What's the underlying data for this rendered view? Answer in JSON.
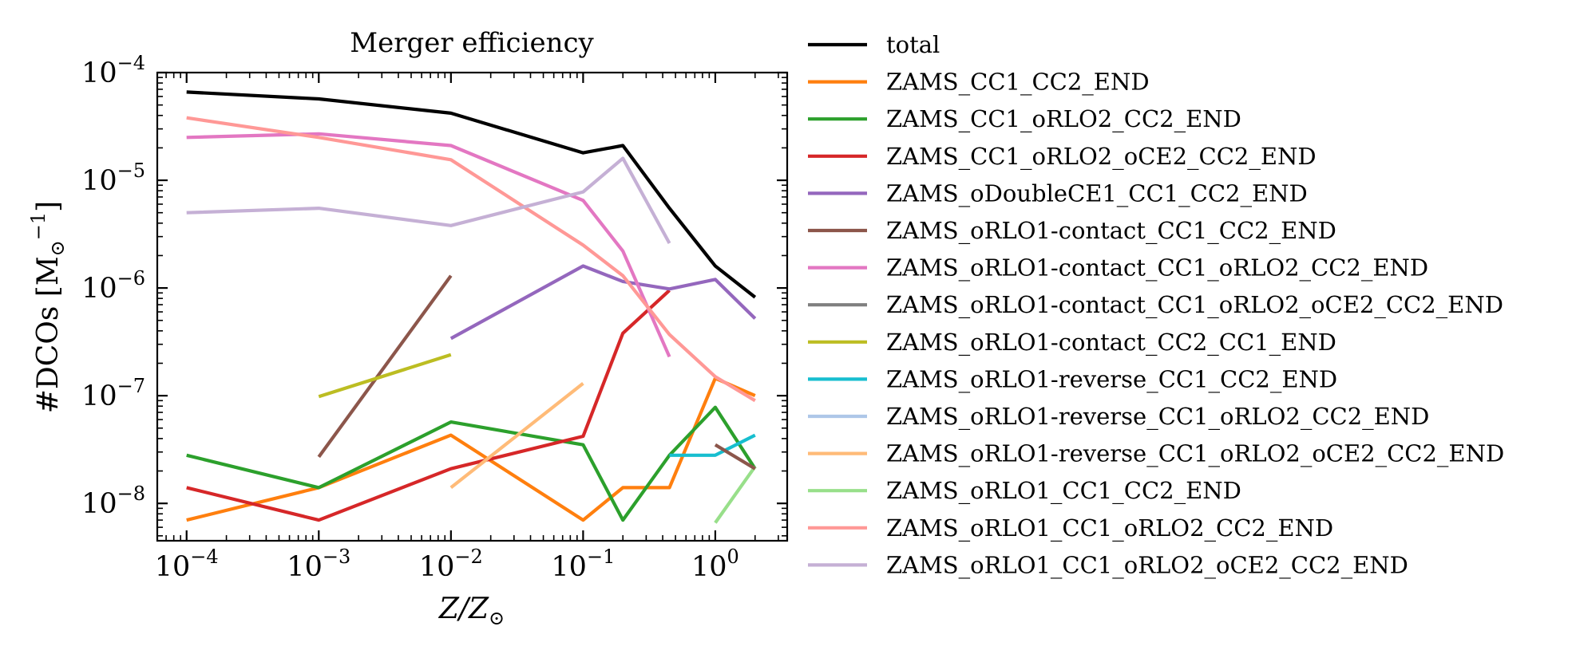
{
  "chart_data": {
    "type": "line",
    "title": "Merger efficiency",
    "xlabel_base": "Z/Z",
    "xlabel_sub": "⊙",
    "ylabel_base": "#DCOs [M",
    "ylabel_sub": "⊙",
    "ylabel_sup": "−1",
    "ylabel_end": "]",
    "x_scale": "log",
    "y_scale": "log",
    "xlim": [
      6e-05,
      3.5
    ],
    "ylim": [
      4.5e-09,
      0.0001
    ],
    "legend_position": "outside-right",
    "grid": false,
    "x_ticks": [
      {
        "value": 0.0001,
        "base": "10",
        "exp": "−4"
      },
      {
        "value": 0.001,
        "base": "10",
        "exp": "−3"
      },
      {
        "value": 0.01,
        "base": "10",
        "exp": "−2"
      },
      {
        "value": 0.1,
        "base": "10",
        "exp": "−1"
      },
      {
        "value": 1,
        "base": "10",
        "exp": "0"
      }
    ],
    "y_ticks": [
      {
        "value": 1e-08,
        "base": "10",
        "exp": "−8"
      },
      {
        "value": 1e-07,
        "base": "10",
        "exp": "−7"
      },
      {
        "value": 1e-06,
        "base": "10",
        "exp": "−6"
      },
      {
        "value": 1e-05,
        "base": "10",
        "exp": "−5"
      },
      {
        "value": 0.0001,
        "base": "10",
        "exp": "−4"
      }
    ],
    "series": [
      {
        "name": "total",
        "color": "#000000",
        "points": [
          [
            0.0001,
            6.6e-05
          ],
          [
            0.001,
            5.7e-05
          ],
          [
            0.01,
            4.2e-05
          ],
          [
            0.1,
            1.8e-05
          ],
          [
            0.2,
            2.1e-05
          ],
          [
            0.45,
            5.5e-06
          ],
          [
            1.0,
            1.6e-06
          ],
          [
            2.0,
            8.2e-07
          ]
        ]
      },
      {
        "name": "ZAMS_CC1_CC2_END",
        "color": "#ff7f0e",
        "points": [
          [
            0.0001,
            7e-09
          ],
          [
            0.001,
            1.4e-08
          ],
          [
            0.01,
            4.3e-08
          ],
          [
            0.1,
            7e-09
          ],
          [
            0.2,
            1.4e-08
          ],
          [
            0.45,
            1.4e-08
          ],
          [
            1.0,
            1.45e-07
          ],
          [
            2.0,
            1e-07
          ]
        ]
      },
      {
        "name": "ZAMS_CC1_oRLO2_CC2_END",
        "color": "#2ca02c",
        "points": [
          [
            0.0001,
            2.8e-08
          ],
          [
            0.001,
            1.4e-08
          ],
          [
            0.01,
            5.7e-08
          ],
          [
            0.1,
            3.5e-08
          ],
          [
            0.2,
            7e-09
          ],
          [
            0.45,
            2.8e-08
          ],
          [
            1.0,
            7.8e-08
          ],
          [
            2.0,
            2.1e-08
          ]
        ]
      },
      {
        "name": "ZAMS_CC1_oRLO2_oCE2_CC2_END",
        "color": "#d62728",
        "points": [
          [
            0.0001,
            1.4e-08
          ],
          [
            0.001,
            7e-09
          ],
          [
            0.01,
            2.1e-08
          ],
          [
            0.1,
            4.2e-08
          ],
          [
            0.2,
            3.8e-07
          ],
          [
            0.45,
            9.5e-07
          ]
        ]
      },
      {
        "name": "ZAMS_oDoubleCE1_CC1_CC2_END",
        "color": "#9467bd",
        "points": [
          [
            0.01,
            3.4e-07
          ],
          [
            0.1,
            1.6e-06
          ],
          [
            0.2,
            1.15e-06
          ],
          [
            0.45,
            9.8e-07
          ],
          [
            1.0,
            1.2e-06
          ],
          [
            2.0,
            5.2e-07
          ]
        ]
      },
      {
        "name": "ZAMS_oRLO1-contact_CC1_CC2_END",
        "color": "#8c564b",
        "points": [
          [
            0.001,
            2.7e-08
          ],
          [
            0.01,
            1.3e-06
          ]
        ]
      },
      {
        "name": "ZAMS_oRLO1-contact_CC1_oRLO2_CC2_END",
        "color": "#e377c2",
        "points": [
          [
            0.0001,
            2.5e-05
          ],
          [
            0.001,
            2.7e-05
          ],
          [
            0.01,
            2.1e-05
          ],
          [
            0.1,
            6.5e-06
          ],
          [
            0.2,
            2.2e-06
          ],
          [
            0.45,
            2.3e-07
          ]
        ]
      },
      {
        "name": "ZAMS_oRLO1-contact_CC1_oRLO2_oCE2_CC2_END",
        "color": "#7f7f7f",
        "points": []
      },
      {
        "name": "ZAMS_oRLO1-contact_CC2_CC1_END",
        "color": "#bcbd22",
        "points": [
          [
            0.001,
            9.8e-08
          ],
          [
            0.01,
            2.4e-07
          ]
        ]
      },
      {
        "name": "ZAMS_oRLO1-reverse_CC1_CC2_END",
        "color": "#17becf",
        "points": [
          [
            0.45,
            2.8e-08
          ],
          [
            1.0,
            2.8e-08
          ],
          [
            2.0,
            4.3e-08
          ]
        ]
      },
      {
        "name": "ZAMS_oRLO1-reverse_CC1_oRLO2_CC2_END",
        "color": "#aec7e8",
        "points": []
      },
      {
        "name": "ZAMS_oRLO1-reverse_CC1_oRLO2_oCE2_CC2_END",
        "color": "#ffbb78",
        "points": [
          [
            0.01,
            1.4e-08
          ],
          [
            0.1,
            1.3e-07
          ]
        ]
      },
      {
        "name": "ZAMS_oRLO1_CC1_CC2_END",
        "color": "#98df8a",
        "points": [
          [
            1.0,
            6.6e-09
          ],
          [
            2.0,
            2.2e-08
          ]
        ]
      },
      {
        "name": "ZAMS_oRLO1_CC1_oRLO2_CC2_END",
        "color": "#ff9896",
        "points": [
          [
            0.0001,
            3.8e-05
          ],
          [
            0.001,
            2.5e-05
          ],
          [
            0.01,
            1.55e-05
          ],
          [
            0.1,
            2.5e-06
          ],
          [
            0.2,
            1.3e-06
          ],
          [
            0.45,
            3.7e-07
          ],
          [
            1.0,
            1.5e-07
          ],
          [
            2.0,
            9e-08
          ]
        ]
      },
      {
        "name": "ZAMS_oRLO1_CC1_oRLO2_oCE2_CC2_END",
        "color": "#c5b0d5",
        "points": [
          [
            0.0001,
            5e-06
          ],
          [
            0.001,
            5.5e-06
          ],
          [
            0.01,
            3.8e-06
          ],
          [
            0.1,
            7.8e-06
          ],
          [
            0.2,
            1.6e-05
          ],
          [
            0.45,
            2.6e-06
          ]
        ]
      }
    ],
    "extra_segments": [
      {
        "series": "ZAMS_oRLO1-contact_CC1_CC2_END",
        "points": [
          [
            1.0,
            3.5e-08
          ],
          [
            2.0,
            2.1e-08
          ]
        ]
      }
    ]
  }
}
